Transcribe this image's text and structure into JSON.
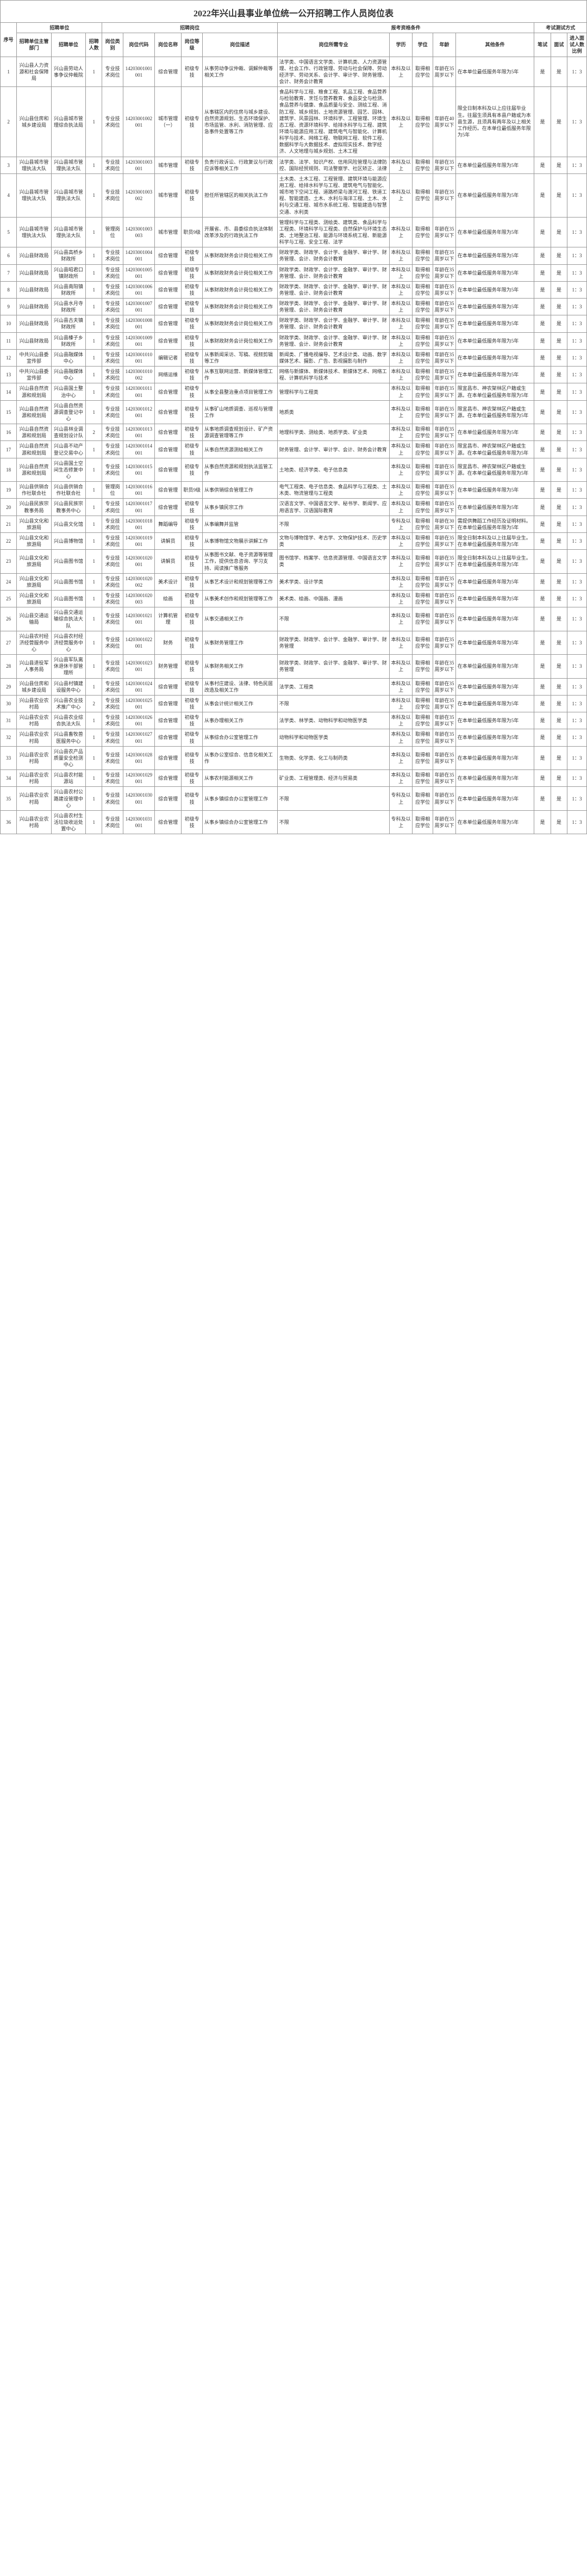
{
  "title": "2022年兴山县事业单位统一公开招聘工作人员岗位表",
  "header": {
    "group1": "招聘单位",
    "group2": "招聘岗位",
    "group3": "报考资格条件",
    "group4": "考试测试方式",
    "h_idx": "序号",
    "h_dept1": "招聘单位主管部门",
    "h_dept2": "招聘单位",
    "h_num": "招聘人数",
    "h_type": "岗位类别",
    "h_code": "岗位代码",
    "h_name": "岗位名称",
    "h_grade": "岗位等级",
    "h_desc": "岗位描述",
    "h_maj": "岗位所需专业",
    "h_edu": "学历",
    "h_deg": "学位",
    "h_age": "年龄",
    "h_oth": "其他条件",
    "h_exam": "笔试",
    "h_int": "面试",
    "h_ratio": "进入面试人数比例"
  },
  "defaults": {
    "exam": "是",
    "int": "是",
    "ratio": "1：3",
    "age": "年龄在35周岁以下",
    "edu": "本科及以上",
    "deg": "取得相应学位"
  },
  "rows": [
    {
      "idx": "1",
      "dept1": "兴山县人力资源和社会保障局",
      "dept2": "兴山县劳动人事争议仲裁院",
      "num": "1",
      "type": "专业技术岗位",
      "code": "14203001001001",
      "name": "综合管理",
      "grade": "初级专技",
      "desc": "从事劳动争议仲裁、调解仲裁等相关工作",
      "maj": "法学类、中国语言文学类、计算机类、人力资源管理、社会工作、行政管理、劳动与社会保障、劳动经济学、劳动关系、会计学、审计学、财务管理、会计、财务会计教育",
      "oth": "在本单位最低服务年限为5年"
    },
    {
      "idx": "2",
      "dept1": "兴山县住房和城乡建设局",
      "dept2": "兴山县城市管理综合执法局",
      "num": "1",
      "type": "专业技术岗位",
      "code": "14203001002001",
      "name": "城市管理（一）",
      "grade": "初级专技",
      "desc": "从事辖区内的住房与城乡建设、自然资源规划、生态环境保护、市场监管、水利、消防管理、应急事件处置等工作",
      "maj": "食品科学与工程、粮食工程、乳品工程、食品营养与检验教育、烹饪与营养教育、食品安全与检测、食品营养与健康、食品质量与安全、测绘工程、消防工程、城乡规划、土地资源管理、园艺、园林、建筑学、风景园林、环境科学、工程管理、环境生态工程、资源环境科学、给排水科学与工程、建筑环境与能源应用工程、建筑电气与智能化、计算机科学与技术、网络工程、物联网工程、软件工程、数据科学与大数据技术、虚拟现实技术、数字经济、人文地理与城乡规划、土木工程",
      "age": "年龄在40周岁以下",
      "oth": "限全日制本科及以上应往届毕业生。往届生须具有本县户籍或为本县生源，且须具有两年及以上相关工作经历。在本单位最低服务年限为5年"
    },
    {
      "idx": "3",
      "dept1": "兴山县城市管理执法大队",
      "dept2": "兴山县城市管理执法大队",
      "num": "1",
      "type": "专业技术岗位",
      "code": "14203001003001",
      "name": "城市管理",
      "grade": "初级专技",
      "desc": "负责行政诉讼、行政复议与行政应诉等相关工作",
      "maj": "法学类、法学、知识产权、信用风险管理与法律防控、国际经贸规则、司法警察学、社区矫正、法律",
      "oth": "在本单位最低服务年限为5年"
    },
    {
      "idx": "4",
      "dept1": "兴山县城市管理执法大队",
      "dept2": "兴山县城市管理执法大队",
      "num": "1",
      "type": "专业技术岗位",
      "code": "14203001003002",
      "name": "城市管理",
      "grade": "初级专技",
      "desc": "担任所管辖区的相关执法工作",
      "maj": "土木类、土木工程、工程管理、建筑环境与能源应用工程、给排水科学与工程、建筑电气与智能化、城市地下空间工程、道路桥梁与渡河工程、铁道工程、智能建造、土木、水利与海洋工程、土木、水利与交通工程、城市水系统工程、智能建造与智慧交通、水利类",
      "oth": "在本单位最低服务年限为5年"
    },
    {
      "idx": "5",
      "dept1": "兴山县城市管理执法大队",
      "dept2": "兴山县城市管理执法大队",
      "num": "1",
      "type": "管理岗位",
      "code": "14203001003003",
      "name": "城市管理",
      "grade": "职员9级",
      "desc": "开展省、市、县委综合执法体制改革涉及的行政执法工作",
      "maj": "管理科学与工程类、测绘类、建筑类、食品科学与工程类、环境科学与工程类、自然保护与环境生态类、土地整治工程、能源与环境系统工程、新能源科学与工程、安全工程、法学",
      "oth": "在本单位最低服务年限为5年"
    },
    {
      "idx": "6",
      "dept1": "兴山县财政局",
      "dept2": "兴山县高桥乡财政所",
      "num": "1",
      "type": "专业技术岗位",
      "code": "14203001004001",
      "name": "综合管理",
      "grade": "初级专技",
      "desc": "从事财政财务会计岗位相关工作",
      "maj": "财政学类、财政学、会计学、金融学、审计学、财务管理、会计、财务会计教育",
      "oth": "在本单位最低服务年限为5年"
    },
    {
      "idx": "7",
      "dept1": "兴山县财政局",
      "dept2": "兴山县昭君口镇财政所",
      "num": "1",
      "type": "专业技术岗位",
      "code": "14203001005001",
      "name": "综合管理",
      "grade": "初级专技",
      "desc": "从事财政财务会计岗位相关工作",
      "maj": "财政学类、财政学、会计学、金融学、审计学、财务管理、会计、财务会计教育",
      "oth": "在本单位最低服务年限为5年"
    },
    {
      "idx": "8",
      "dept1": "兴山县财政局",
      "dept2": "兴山县南阳镇财政所",
      "num": "1",
      "type": "专业技术岗位",
      "code": "14203001006001",
      "name": "综合管理",
      "grade": "初级专技",
      "desc": "从事财政财务会计岗位相关工作",
      "maj": "财政学类、财政学、会计学、金融学、审计学、财务管理、会计、财务会计教育",
      "oth": "在本单位最低服务年限为5年"
    },
    {
      "idx": "9",
      "dept1": "兴山县财政局",
      "dept2": "兴山县水月寺财政所",
      "num": "1",
      "type": "专业技术岗位",
      "code": "14203001007001",
      "name": "综合管理",
      "grade": "初级专技",
      "desc": "从事财政财务会计岗位相关工作",
      "maj": "财政学类、财政学、会计学、金融学、审计学、财务管理、会计、财务会计教育",
      "oth": "在本单位最低服务年限为5年"
    },
    {
      "idx": "10",
      "dept1": "兴山县财政局",
      "dept2": "兴山县古夫镇财政所",
      "num": "1",
      "type": "专业技术岗位",
      "code": "14203001008001",
      "name": "综合管理",
      "grade": "初级专技",
      "desc": "从事财政财务会计岗位相关工作",
      "maj": "财政学类、财政学、会计学、金融学、审计学、财务管理、会计、财务会计教育",
      "oth": "在本单位最低服务年限为5年"
    },
    {
      "idx": "11",
      "dept1": "兴山县财政局",
      "dept2": "兴山县榛子乡财政所",
      "num": "1",
      "type": "专业技术岗位",
      "code": "14203001009001",
      "name": "综合管理",
      "grade": "初级专技",
      "desc": "从事财政财务会计岗位相关工作",
      "maj": "财政学类、财政学、会计学、金融学、审计学、财务管理、会计、财务会计教育",
      "oth": "在本单位最低服务年限为5年"
    },
    {
      "idx": "12",
      "dept1": "中共兴山县委宣传部",
      "dept2": "兴山县融媒体中心",
      "num": "1",
      "type": "专业技术岗位",
      "code": "14203001010001",
      "name": "编辑记者",
      "grade": "初级专技",
      "desc": "从事新闻采访、写稿、视频剪辑等工作",
      "maj": "新闻类、广播电视编导、艺术设计类、动画、数字媒体艺术、摄影、广告、影视摄影与制作",
      "oth": "在本单位最低服务年限为5年"
    },
    {
      "idx": "13",
      "dept1": "中共兴山县委宣传部",
      "dept2": "兴山县融媒体中心",
      "num": "1",
      "type": "专业技术岗位",
      "code": "14203001010002",
      "name": "网络运维",
      "grade": "初级专技",
      "desc": "从事互联网运营、新媒体管理工作",
      "maj": "网络与新媒体、新媒体技术、新媒体艺术、网络工程、计算机科学与技术",
      "oth": "在本单位最低服务年限为5年"
    },
    {
      "idx": "14",
      "dept1": "兴山县自然资源和规划局",
      "dept2": "兴山县国土整治中心",
      "num": "1",
      "type": "专业技术岗位",
      "code": "14203001011001",
      "name": "综合管理",
      "grade": "初级专技",
      "desc": "从事全县整治重点项目管理工作",
      "maj": "管理科学与工程类",
      "oth": "限宜昌市、神农架林区户籍或生源。在本单位最低服务年限为5年"
    },
    {
      "idx": "15",
      "dept1": "兴山县自然资源和规划局",
      "dept2": "兴山县自然资源调查登记中心",
      "num": "1",
      "type": "专业技术岗位",
      "code": "14203001012001",
      "name": "综合管理",
      "grade": "初级专技",
      "desc": "从事矿山地质调查、巡视与管理工作",
      "maj": "地质类",
      "oth": "限宜昌市、神农架林区户籍或生源。在本单位最低服务年限为5年"
    },
    {
      "idx": "16",
      "dept1": "兴山县自然资源和规划局",
      "dept2": "兴山县林业调查规划设计队",
      "num": "2",
      "type": "专业技术岗位",
      "code": "14203001013001",
      "name": "综合管理",
      "grade": "初级专技",
      "desc": "从事地质调查规划设计、矿产资源调查管理等工作",
      "maj": "地理科学类、测绘类、地质学类、矿业类",
      "oth": "在本单位最低服务年限为5年"
    },
    {
      "idx": "17",
      "dept1": "兴山县自然资源和规划局",
      "dept2": "兴山县不动产登记交易中心",
      "num": "1",
      "type": "专业技术岗位",
      "code": "14203001014001",
      "name": "综合管理",
      "grade": "初级专技",
      "desc": "从事自然资源测绘相关工作",
      "maj": "财务管理、会计学、审计学、会计、财务会计教育",
      "oth": "限宜昌市、神农架林区户籍或生源。在本单位最低服务年限为5年"
    },
    {
      "idx": "18",
      "dept1": "兴山县自然资源和规划局",
      "dept2": "兴山县国土空间生态修复中心",
      "num": "1",
      "type": "专业技术岗位",
      "code": "14203001015001",
      "name": "综合管理",
      "grade": "初级专技",
      "desc": "从事自然资源和规划执法监管工作",
      "maj": "土地类、经济学类、电子信息类",
      "oth": "限宜昌市、神农架林区户籍或生源。在本单位最低服务年限为5年"
    },
    {
      "idx": "19",
      "dept1": "兴山县供销合作社联合社",
      "dept2": "兴山县供销合作社联合社",
      "num": "1",
      "type": "管理岗位",
      "code": "14203001016001",
      "name": "综合管理",
      "grade": "职员9级",
      "desc": "从事供销综合管理工作",
      "maj": "电气工程类、电子信息类、食品科学与工程类、土木类、物流管理与工程类",
      "oth": "在本单位最低服务年限为5年"
    },
    {
      "idx": "20",
      "dept1": "兴山县民族宗教事务局",
      "dept2": "兴山县民族宗教事务中心",
      "num": "1",
      "type": "专业技术岗位",
      "code": "14203001017001",
      "name": "综合管理",
      "grade": "初级专技",
      "desc": "从事乡镇民宗工作",
      "maj": "汉语言文学、中国语言文学、秘书学、新闻学、应用语言学、汉语国际教育",
      "oth": "在本单位最低服务年限为5年"
    },
    {
      "idx": "21",
      "dept1": "兴山县文化和旅游局",
      "dept2": "兴山县文化馆",
      "num": "1",
      "type": "专业技术岗位",
      "code": "14203001018001",
      "name": "舞蹈编导",
      "grade": "初级专技",
      "desc": "从事编舞并监管",
      "maj": "不限",
      "edu": "专科及以上",
      "age": "年龄在30周岁以下",
      "oth": "需提供舞蹈工作经历及证明材料。在本单位最低服务年限为5年"
    },
    {
      "idx": "22",
      "dept1": "兴山县文化和旅游局",
      "dept2": "兴山县博物馆",
      "num": "1",
      "type": "专业技术岗位",
      "code": "14203001019001",
      "name": "讲解员",
      "grade": "初级专技",
      "desc": "从事博物馆文物展示讲解工作",
      "maj": "文物与博物馆学、考古学、文物保护技术、历史学类",
      "oth": "限全日制本科及以上往届毕业生。在本单位最低服务年限为5年"
    },
    {
      "idx": "23",
      "dept1": "兴山县文化和旅游局",
      "dept2": "兴山县图书馆",
      "num": "1",
      "type": "专业技术岗位",
      "code": "14203001020001",
      "name": "讲解员",
      "grade": "初级专技",
      "desc": "从事图书文献、电子资源等管理工作，提供信息咨询、学习支持、阅读推广等服务",
      "maj": "图书馆学、档案学、信息资源管理、中国语言文学类",
      "oth": "限全日制本科及以上往届毕业生。在本单位最低服务年限为5年"
    },
    {
      "idx": "24",
      "dept1": "兴山县文化和旅游局",
      "dept2": "兴山县图书馆",
      "num": "1",
      "type": "专业技术岗位",
      "code": "14203001020002",
      "name": "美术设计",
      "grade": "初级专技",
      "desc": "从事艺术设计和规划管理等工作",
      "maj": "美术学类、设计学类",
      "oth": "在本单位最低服务年限为5年"
    },
    {
      "idx": "25",
      "dept1": "兴山县文化和旅游局",
      "dept2": "兴山县图书馆",
      "num": "1",
      "type": "专业技术岗位",
      "code": "14203001020003",
      "name": "绘画",
      "grade": "初级专技",
      "desc": "从事美术创作和规划管理等工作",
      "maj": "美术类、绘画、中国画、漫画",
      "oth": "在本单位最低服务年限为5年"
    },
    {
      "idx": "26",
      "dept1": "兴山县交通运输局",
      "dept2": "兴山县交通运输综合执法大队",
      "num": "1",
      "type": "专业技术岗位",
      "code": "14203001021001",
      "name": "计算机管理",
      "grade": "初级专技",
      "desc": "从事交通相关工作",
      "maj": "不限",
      "oth": "在本单位最低服务年限为5年"
    },
    {
      "idx": "27",
      "dept1": "兴山县农村经济经营服务中心",
      "dept2": "兴山县农村经济经营服务中心",
      "num": "1",
      "type": "专业技术岗位",
      "code": "14203001022001",
      "name": "财务",
      "grade": "初级专技",
      "desc": "从事财务管理工作",
      "maj": "财政学类、财政学、会计学、金融学、审计学、财务管理",
      "oth": "在本单位最低服务年限为5年"
    },
    {
      "idx": "28",
      "dept1": "兴山县退役军人事务局",
      "dept2": "兴山县军队离休退休干部管理所",
      "num": "1",
      "type": "专业技术岗位",
      "code": "14203001023001",
      "name": "财务管理",
      "grade": "初级专技",
      "desc": "从事财务相关工作",
      "maj": "财政学类、财政学、会计学、金融学、审计学、财务管理",
      "oth": "在本单位最低服务年限为5年"
    },
    {
      "idx": "29",
      "dept1": "兴山县住房和城乡建设局",
      "dept2": "兴山县村镇建设服务中心",
      "num": "1",
      "type": "专业技术岗位",
      "code": "14203001024001",
      "name": "综合管理",
      "grade": "初级专技",
      "desc": "从事村庄建设、法律、特色民居改造及相关工作",
      "maj": "法学类、工程类",
      "oth": "在本单位最低服务年限为5年"
    },
    {
      "idx": "30",
      "dept1": "兴山县农业农村局",
      "dept2": "兴山县农业技术推广中心",
      "num": "2",
      "type": "专业技术岗位",
      "code": "14203001025001",
      "name": "综合管理",
      "grade": "初级专技",
      "desc": "从事会计统计相关工作",
      "maj": "不限",
      "oth": "在本单位最低服务年限为5年"
    },
    {
      "idx": "31",
      "dept1": "兴山县农业农村局",
      "dept2": "兴山县农业综合执法大队",
      "num": "1",
      "type": "专业技术岗位",
      "code": "14203001026001",
      "name": "综合管理",
      "grade": "初级专技",
      "desc": "从事办理相关工作",
      "maj": "法学类、林学类、动物科学和动物医学类",
      "oth": "在本单位最低服务年限为5年"
    },
    {
      "idx": "32",
      "dept1": "兴山县农业农村局",
      "dept2": "兴山县畜牧兽医服务中心",
      "num": "1",
      "type": "专业技术岗位",
      "code": "14203001027001",
      "name": "综合管理",
      "grade": "初级专技",
      "desc": "从事综合办公室管理工作",
      "maj": "动物科学和动物医学类",
      "oth": "在本单位最低服务年限为5年"
    },
    {
      "idx": "33",
      "dept1": "兴山县农业农村局",
      "dept2": "兴山县农产品质量安全检测中心",
      "num": "1",
      "type": "专业技术岗位",
      "code": "14203001028001",
      "name": "综合管理",
      "grade": "初级专技",
      "desc": "从事办公室综合、信息化相关工作",
      "maj": "生物类、化学类、化工与制药类",
      "oth": "在本单位最低服务年限为5年"
    },
    {
      "idx": "34",
      "dept1": "兴山县农业农村局",
      "dept2": "兴山县农村能源站",
      "num": "1",
      "type": "专业技术岗位",
      "code": "14203001029001",
      "name": "综合管理",
      "grade": "初级专技",
      "desc": "从事农村能源相关工作",
      "maj": "矿业类、工程管理类、经济与贸易类",
      "oth": "在本单位最低服务年限为5年"
    },
    {
      "idx": "35",
      "dept1": "兴山县农业农村局",
      "dept2": "兴山县农村公路建设管理中心",
      "num": "1",
      "type": "专业技术岗位",
      "code": "14203001030001",
      "name": "综合管理",
      "grade": "初级专技",
      "desc": "从事乡镇综合办公室管理工作",
      "maj": "不限",
      "edu": "专科及以上",
      "oth": "在本单位最低服务年限为5年"
    },
    {
      "idx": "36",
      "dept1": "兴山县农业农村局",
      "dept2": "兴山县农村生活垃圾收运处置中心",
      "num": "1",
      "type": "专业技术岗位",
      "code": "14203001031001",
      "name": "综合管理",
      "grade": "初级专技",
      "desc": "从事乡镇综合办公室管理工作",
      "maj": "不限",
      "edu": "专科及以上",
      "oth": "在本单位最低服务年限为5年"
    }
  ]
}
